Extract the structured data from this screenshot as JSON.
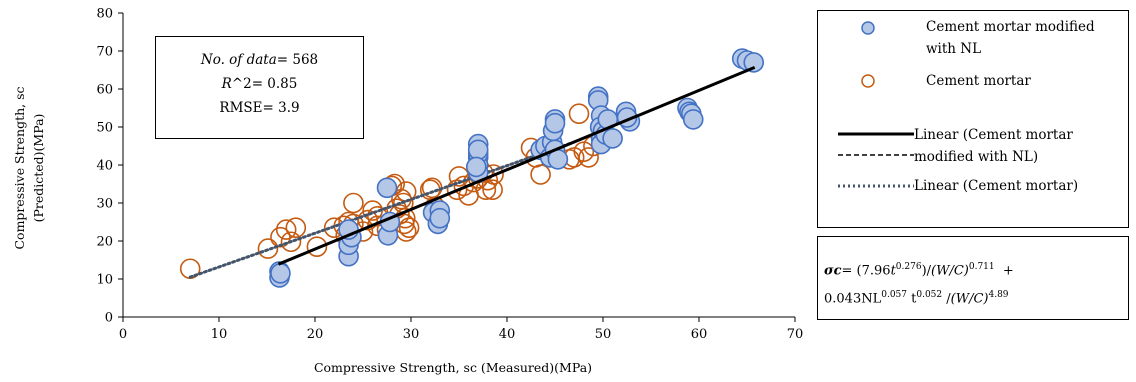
{
  "chart_data": {
    "type": "scatter",
    "xlabel": "Compressive Strength, sc (Measured)(MPa)",
    "ylabel_line1": "Compressive Strength, sc",
    "ylabel_line2": "(Predicted)(MPa)",
    "xlim": [
      0,
      70
    ],
    "ylim": [
      0,
      80
    ],
    "x_ticks": [
      0,
      10,
      20,
      30,
      40,
      50,
      60,
      70
    ],
    "y_ticks": [
      0,
      10,
      20,
      30,
      40,
      50,
      60,
      70,
      80
    ],
    "grid": false,
    "legend_position": "right",
    "series": [
      {
        "name": "Cement mortar modified with NL",
        "marker": "filled-circle",
        "color": "#b4c7e7",
        "edge": "#4472c4",
        "points": [
          [
            16.3,
            12
          ],
          [
            16.3,
            10.4
          ],
          [
            16.4,
            11.5
          ],
          [
            23.5,
            16
          ],
          [
            23.5,
            19
          ],
          [
            23.8,
            21
          ],
          [
            23.5,
            23
          ],
          [
            27.5,
            34
          ],
          [
            27.6,
            21.5
          ],
          [
            27.8,
            25
          ],
          [
            32.3,
            27.5
          ],
          [
            32.8,
            24.5
          ],
          [
            33,
            28
          ],
          [
            33,
            26
          ],
          [
            37,
            45.5
          ],
          [
            37,
            42
          ],
          [
            37,
            40
          ],
          [
            37,
            38
          ],
          [
            37,
            43
          ],
          [
            37,
            44
          ],
          [
            36.8,
            39.5
          ],
          [
            43.5,
            44
          ],
          [
            44,
            45
          ],
          [
            44.5,
            42
          ],
          [
            44.7,
            46
          ],
          [
            44.8,
            49
          ],
          [
            45,
            52
          ],
          [
            45,
            51
          ],
          [
            45,
            44
          ],
          [
            45.3,
            41.5
          ],
          [
            49.5,
            58
          ],
          [
            49.5,
            57
          ],
          [
            49.8,
            53
          ],
          [
            49.7,
            50
          ],
          [
            49.8,
            47
          ],
          [
            49.8,
            45.5
          ],
          [
            50,
            49
          ],
          [
            50.3,
            48
          ],
          [
            50.5,
            52
          ],
          [
            51,
            47
          ],
          [
            52.4,
            54
          ],
          [
            52.8,
            51.5
          ],
          [
            52.5,
            52.5
          ],
          [
            58.8,
            55
          ],
          [
            59,
            54
          ],
          [
            59.2,
            53.5
          ],
          [
            59.4,
            52
          ],
          [
            64.5,
            68
          ],
          [
            65,
            67.5
          ],
          [
            65.7,
            67
          ]
        ]
      },
      {
        "name": "Cement mortar",
        "marker": "open-circle",
        "color": "#c55a11",
        "points": [
          [
            7,
            12.7
          ],
          [
            15.1,
            18
          ],
          [
            16.4,
            21
          ],
          [
            17,
            23
          ],
          [
            17.5,
            19.8
          ],
          [
            18,
            23.5
          ],
          [
            20.2,
            18.5
          ],
          [
            22,
            23.5
          ],
          [
            23,
            24
          ],
          [
            23.2,
            21.5
          ],
          [
            23.5,
            25
          ],
          [
            24,
            30
          ],
          [
            24,
            24.5
          ],
          [
            25,
            22.5
          ],
          [
            25.5,
            25.5
          ],
          [
            26,
            28
          ],
          [
            26.5,
            26.5
          ],
          [
            26.5,
            24
          ],
          [
            27.5,
            23
          ],
          [
            28,
            34.5
          ],
          [
            28.3,
            35
          ],
          [
            28.5,
            28.5
          ],
          [
            28.8,
            27
          ],
          [
            29,
            31
          ],
          [
            29.2,
            30
          ],
          [
            29.4,
            26
          ],
          [
            29.3,
            24.5
          ],
          [
            29.5,
            22.5
          ],
          [
            29.8,
            23.5
          ],
          [
            29.5,
            33
          ],
          [
            32,
            33.5
          ],
          [
            32.2,
            34
          ],
          [
            32.5,
            29
          ],
          [
            34.8,
            33.5
          ],
          [
            35,
            37
          ],
          [
            35.5,
            34.5
          ],
          [
            36,
            32
          ],
          [
            36.5,
            35.5
          ],
          [
            37,
            36.5
          ],
          [
            37.5,
            38
          ],
          [
            37.8,
            33.5
          ],
          [
            38,
            36
          ],
          [
            38.5,
            33.5
          ],
          [
            38.6,
            37.5
          ],
          [
            42.5,
            44.5
          ],
          [
            43,
            42
          ],
          [
            43.5,
            37.5
          ],
          [
            44,
            44
          ],
          [
            44.5,
            43
          ],
          [
            46.5,
            41.5
          ],
          [
            47.5,
            53.5
          ],
          [
            47,
            42
          ],
          [
            48,
            43.5
          ],
          [
            48.5,
            42
          ],
          [
            49,
            45
          ]
        ]
      }
    ],
    "trendlines": [
      {
        "name": "Linear (Cement mortar modified with NL)",
        "style": "solid",
        "color": "#000000",
        "from": [
          16.2,
          13.9
        ],
        "to": [
          65.8,
          65.7
        ]
      },
      {
        "name": "Linear (Cement mortar)",
        "style": "dotted",
        "color": "#44546a",
        "from": [
          7,
          10.5
        ],
        "to": [
          46.5,
          45.6
        ]
      }
    ]
  },
  "stats_box": {
    "n_label": "No. of data",
    "n_value": "= 568",
    "r2_label": "R",
    "r2_value": "^2= 0.85",
    "rmse": "RMSE= 3.9"
  },
  "legend": {
    "item1_line1": "Cement mortar modified",
    "item1_line2": "with NL",
    "item2": "Cement mortar",
    "item3_line1": "Linear (Cement mortar",
    "item3_line2": "modified with NL)",
    "item4": "Linear (Cement mortar)"
  },
  "formula": {
    "sigma": "σc",
    "eq1": "= (7.96",
    "t1": "t",
    "exp1": "0.276",
    "wc": "(W/C)",
    "exp2": "0.711",
    "plus": "+",
    "nl": "0.043NL",
    "exp3": "0.057",
    "t2": " t",
    "exp4": "0.052",
    "exp5": "4.89"
  },
  "colors": {
    "nl_fill": "#b4c7e7",
    "nl_edge": "#4472c4",
    "cm_edge": "#c55a11",
    "dotted": "#44546a"
  }
}
